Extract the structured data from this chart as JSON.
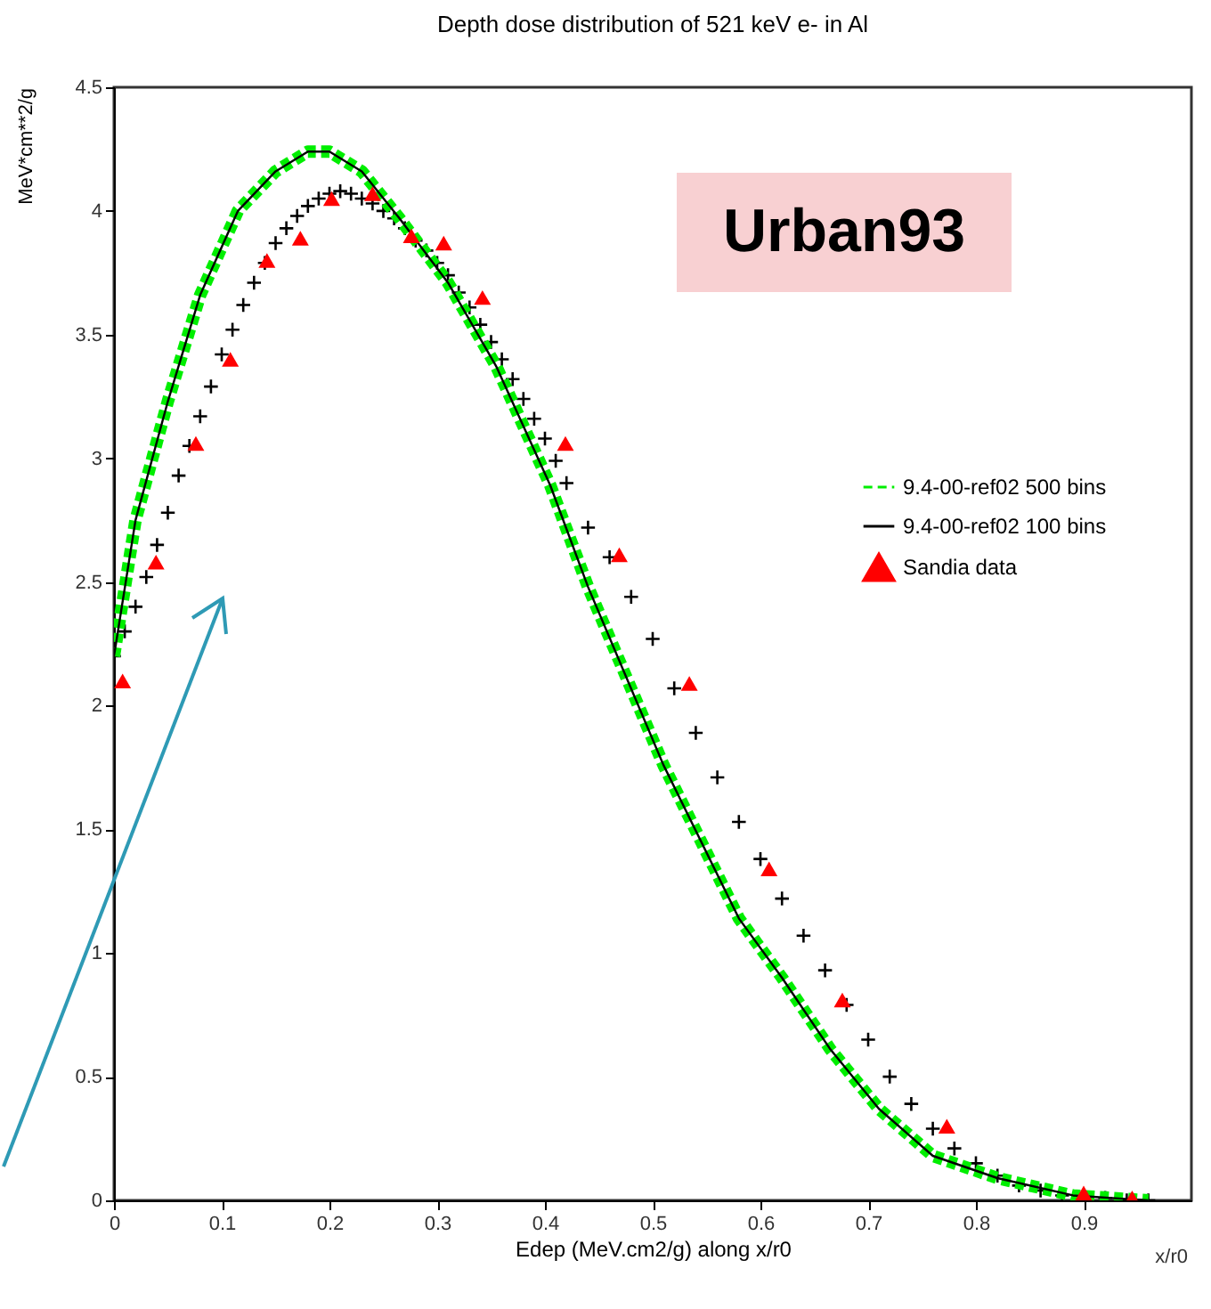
{
  "chart_data": {
    "type": "line",
    "title": "Depth dose distribution of 521 keV e- in Al",
    "xlabel": "Edep (MeV.cm2/g) along x/r0",
    "ylabel": "MeV*cm**2/g",
    "annotations": [
      "Urban93",
      "x/r0"
    ],
    "xlim": [
      0,
      1
    ],
    "xticks": [
      0,
      0.1,
      0.2,
      0.3,
      0.4,
      0.5,
      0.6,
      0.7,
      0.8,
      0.9
    ],
    "ylim": [
      0,
      4.5
    ],
    "yticks": [
      0,
      0.5,
      1,
      1.5,
      2,
      2.5,
      3,
      3.5,
      4,
      4.5
    ],
    "grid": false,
    "legend": "right",
    "series": [
      {
        "name": "9.4-00-ref02 500 bins",
        "line_style": "dashed",
        "color": "#00ee00",
        "x": [
          0,
          0.02,
          0.05,
          0.08,
          0.115,
          0.15,
          0.18,
          0.2,
          0.23,
          0.265,
          0.31,
          0.355,
          0.405,
          0.44,
          0.51,
          0.58,
          0.62,
          0.665,
          0.71,
          0.76,
          0.82,
          0.89,
          0.96
        ],
        "values": [
          2.2,
          2.75,
          3.23,
          3.66,
          4.0,
          4.16,
          4.24,
          4.24,
          4.16,
          3.97,
          3.71,
          3.37,
          2.89,
          2.48,
          1.76,
          1.14,
          0.9,
          0.61,
          0.37,
          0.18,
          0.09,
          0.02,
          0
        ]
      },
      {
        "name": "9.4-00-ref02 100 bins",
        "line_style": "solid",
        "color": "#000000",
        "x": [
          0,
          0.02,
          0.05,
          0.08,
          0.115,
          0.15,
          0.18,
          0.2,
          0.23,
          0.265,
          0.31,
          0.355,
          0.405,
          0.44,
          0.51,
          0.58,
          0.62,
          0.665,
          0.71,
          0.76,
          0.82,
          0.89,
          0.96
        ],
        "values": [
          2.2,
          2.75,
          3.23,
          3.66,
          4.0,
          4.16,
          4.24,
          4.24,
          4.16,
          3.97,
          3.71,
          3.37,
          2.89,
          2.48,
          1.76,
          1.14,
          0.9,
          0.61,
          0.37,
          0.18,
          0.09,
          0.02,
          0
        ]
      },
      {
        "name": "Sandia data",
        "type": "scatter",
        "marker": "triangle",
        "color": "#ff0000",
        "x": [
          0.008,
          0.039,
          0.076,
          0.108,
          0.142,
          0.173,
          0.202,
          0.24,
          0.276,
          0.306,
          0.342,
          0.419,
          0.469,
          0.534,
          0.608,
          0.676,
          0.773,
          0.9,
          0.945
        ],
        "values": [
          2.1,
          2.58,
          3.06,
          3.4,
          3.8,
          3.89,
          4.05,
          4.07,
          3.9,
          3.87,
          3.65,
          3.06,
          2.61,
          2.09,
          1.34,
          0.81,
          0.3,
          0.03,
          0.01
        ]
      },
      {
        "type": "scatter",
        "marker": "cross",
        "color": "#000000",
        "x": [
          0,
          0.01,
          0.02,
          0.03,
          0.04,
          0.05,
          0.06,
          0.07,
          0.08,
          0.09,
          0.1,
          0.11,
          0.12,
          0.13,
          0.14,
          0.15,
          0.16,
          0.17,
          0.18,
          0.19,
          0.2,
          0.21,
          0.22,
          0.23,
          0.24,
          0.25,
          0.26,
          0.27,
          0.28,
          0.29,
          0.3,
          0.31,
          0.32,
          0.33,
          0.34,
          0.35,
          0.36,
          0.37,
          0.38,
          0.39,
          0.4,
          0.41,
          0.42,
          0.44,
          0.46,
          0.48,
          0.5,
          0.52,
          0.54,
          0.56,
          0.58,
          0.6,
          0.62,
          0.64,
          0.66,
          0.68,
          0.7,
          0.72,
          0.74,
          0.76,
          0.78,
          0.8,
          0.82,
          0.84,
          0.86,
          0.88,
          0.92,
          0.94,
          0.96
        ],
        "values": [
          2.2,
          2.3,
          2.4,
          2.52,
          2.65,
          2.78,
          2.93,
          3.05,
          3.17,
          3.29,
          3.42,
          3.52,
          3.62,
          3.71,
          3.79,
          3.87,
          3.93,
          3.98,
          4.02,
          4.05,
          4.07,
          4.08,
          4.07,
          4.05,
          4.03,
          4.0,
          3.97,
          3.93,
          3.88,
          3.84,
          3.79,
          3.74,
          3.67,
          3.61,
          3.54,
          3.47,
          3.4,
          3.32,
          3.24,
          3.16,
          3.08,
          2.99,
          2.9,
          2.72,
          2.6,
          2.44,
          2.27,
          2.07,
          1.89,
          1.71,
          1.53,
          1.38,
          1.22,
          1.07,
          0.93,
          0.79,
          0.65,
          0.5,
          0.39,
          0.29,
          0.21,
          0.15,
          0.1,
          0.06,
          0.04,
          0.02,
          0.01,
          0,
          0
        ]
      }
    ]
  }
}
